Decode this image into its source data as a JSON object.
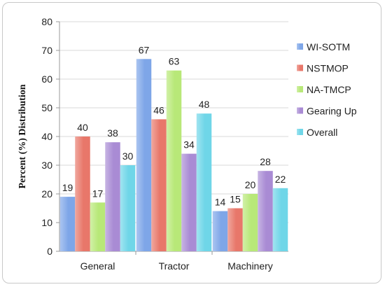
{
  "chart_data": {
    "type": "bar",
    "title": "",
    "xlabel": "",
    "ylabel": "Percent (%) Distribution",
    "ylim": [
      0,
      80
    ],
    "yticks": [
      0,
      10,
      20,
      30,
      40,
      50,
      60,
      70,
      80
    ],
    "grid": true,
    "legend_position": "right",
    "categories": [
      "General",
      "Tractor",
      "Machinery"
    ],
    "series": [
      {
        "name": "WI-SOTM",
        "values": [
          19,
          67,
          14
        ],
        "color": "#7ea6e8"
      },
      {
        "name": "NSTMOP",
        "values": [
          40,
          46,
          15
        ],
        "color": "#e8776a"
      },
      {
        "name": "NA-TMCP",
        "values": [
          17,
          63,
          20
        ],
        "color": "#b8e878"
      },
      {
        "name": "Gearing Up",
        "values": [
          38,
          34,
          28
        ],
        "color": "#a98bd4"
      },
      {
        "name": "Overall",
        "values": [
          30,
          48,
          22
        ],
        "color": "#6fd6e8"
      }
    ]
  }
}
